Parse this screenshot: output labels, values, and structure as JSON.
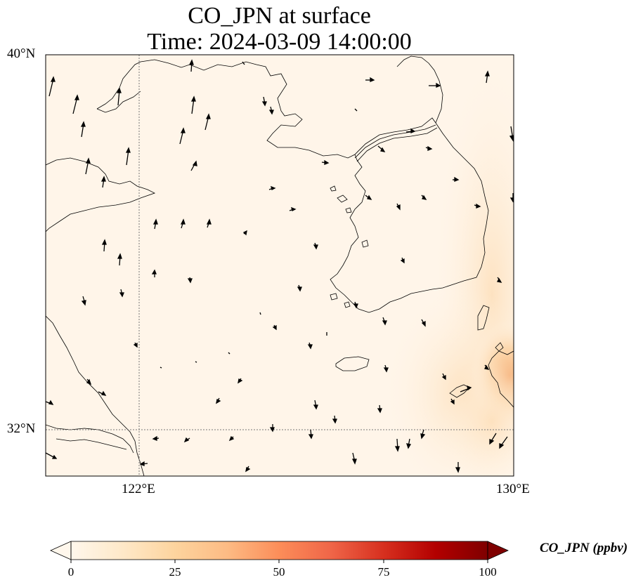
{
  "map": {
    "title_line1": "CO_JPN at surface",
    "title_line2": "Time: 2024-03-09 14:00:00",
    "lat_labels": [
      "40°N",
      "32°N"
    ],
    "lon_labels": [
      "122°E",
      "130°E"
    ],
    "extent": {
      "lon_min": 120,
      "lon_max": 130,
      "lat_min": 31,
      "lat_max": 40
    },
    "gridlines": {
      "lon": [
        122,
        130
      ],
      "lat": [
        32,
        40
      ],
      "style": "dotted"
    }
  },
  "colorbar": {
    "label": "CO_JPN (ppbv)",
    "ticks": [
      "0",
      "25",
      "50",
      "75",
      "100"
    ],
    "min": 0,
    "max": 100,
    "colormap": "OrRd",
    "extend": "both",
    "colors": [
      "#fff7ec",
      "#fee8c8",
      "#fdd49e",
      "#fdbb84",
      "#fc8d59",
      "#ef6548",
      "#d7301f",
      "#b30000",
      "#7f0000"
    ]
  },
  "field": {
    "description_values": "background ~2 ppbv, elevated ~10-30 ppbv over eastern Korea Strait / Kyushu, peak ~35 ppbv near 130E 32.8N"
  }
}
